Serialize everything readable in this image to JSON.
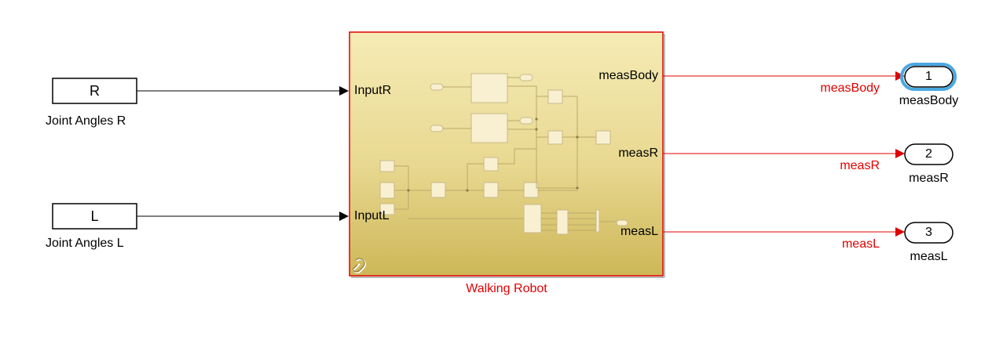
{
  "inputs": [
    {
      "tag": "R",
      "label": "Joint Angles R"
    },
    {
      "tag": "L",
      "label": "Joint Angles L"
    }
  ],
  "subsystem": {
    "name": "Walking Robot",
    "in_ports": [
      "InputR",
      "InputL"
    ],
    "out_ports": [
      "measBody",
      "measR",
      "measL"
    ]
  },
  "signals": [
    "measBody",
    "measR",
    "measL"
  ],
  "outports": [
    {
      "number": "1",
      "label": "measBody",
      "selected": true
    },
    {
      "number": "2",
      "label": "measR",
      "selected": false
    },
    {
      "number": "3",
      "label": "measL",
      "selected": false
    }
  ],
  "colors": {
    "signal": "#e00000",
    "subsystem_fill_top": "#f4e9b0",
    "subsystem_fill_bottom": "#cdb85a",
    "subsystem_border": "#e00000",
    "selection": "#4aa8e0"
  }
}
